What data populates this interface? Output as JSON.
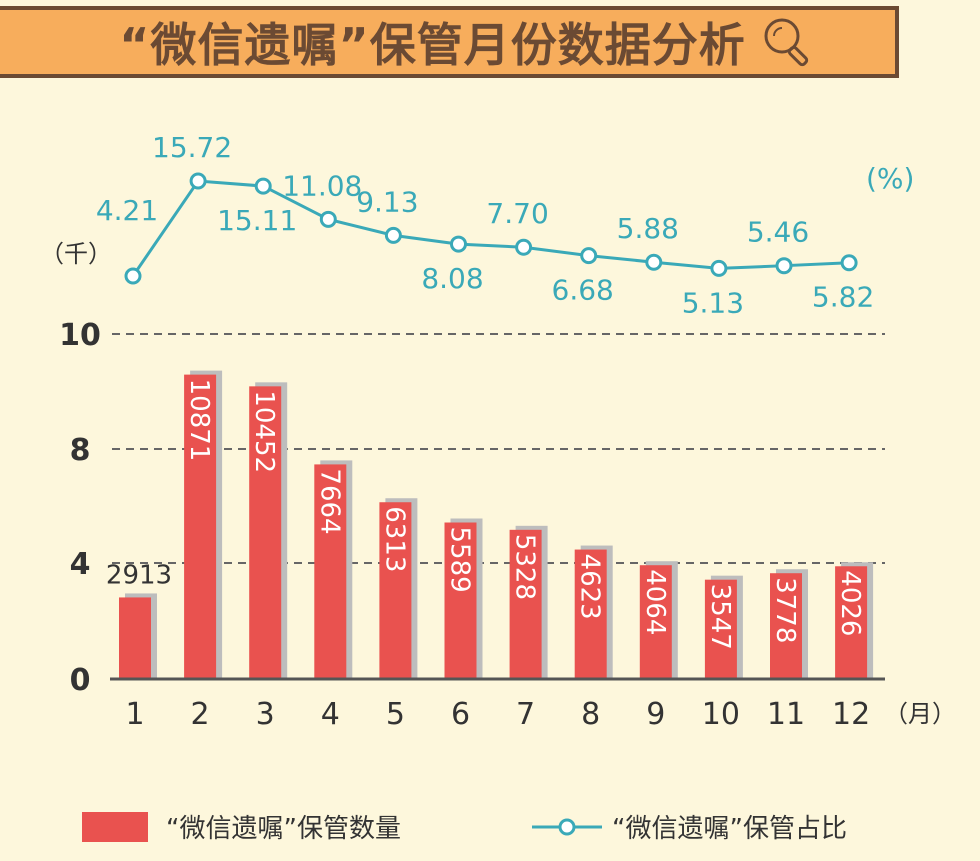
{
  "title": "“微信遗嘱”保管月份数据分析",
  "title_icon": "magnifier-icon",
  "colors": {
    "bar": "#e9524f",
    "bar_shadow": "#bdbdbd",
    "line": "#3aa9b8",
    "title_bg": "#f7ad5c",
    "title_text": "#6b4a33",
    "background": "#fdf7dc"
  },
  "chart_data": {
    "type": "bar+line",
    "categories": [
      "1",
      "2",
      "3",
      "4",
      "5",
      "6",
      "7",
      "8",
      "9",
      "10",
      "11",
      "12"
    ],
    "x_unit": "（月）",
    "y_unit": "（千）",
    "y2_unit": "(%)",
    "y_ticks": [
      "0",
      "4",
      "8",
      "10"
    ],
    "grid": "dashed horizontal",
    "legend_position": "bottom",
    "series": [
      {
        "name": "“微信遗嘱”保管数量",
        "type": "bar",
        "values": [
          2913,
          10871,
          10452,
          7664,
          6313,
          5589,
          5328,
          4623,
          4064,
          3547,
          3778,
          4026
        ]
      },
      {
        "name": "“微信遗嘱”保管占比",
        "type": "line",
        "values": [
          4.21,
          15.72,
          15.11,
          11.08,
          9.13,
          8.08,
          7.7,
          6.68,
          5.88,
          5.13,
          5.46,
          5.82
        ],
        "labels": [
          "4.21",
          "15.72",
          "15.11",
          "11.08",
          "9.13",
          "8.08",
          "7.70",
          "6.68",
          "5.88",
          "5.13",
          "5.46",
          "5.82"
        ]
      }
    ]
  }
}
